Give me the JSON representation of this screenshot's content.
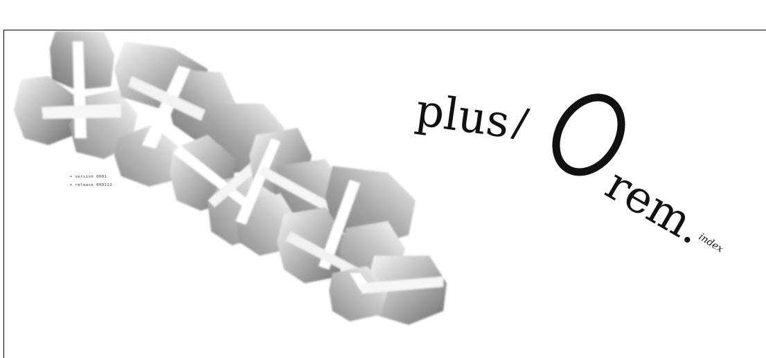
{
  "logo": {
    "part1": "plus",
    "slash": "/",
    "zero": "0",
    "part2": "rem.",
    "suffix": "index"
  },
  "meta": {
    "version": "version 0001",
    "release": "release 000122"
  },
  "colors": {
    "ink": "#111111",
    "frame": "#000000",
    "shade_dark": "#7a7a7a",
    "shade_light": "#f2f2f2"
  }
}
